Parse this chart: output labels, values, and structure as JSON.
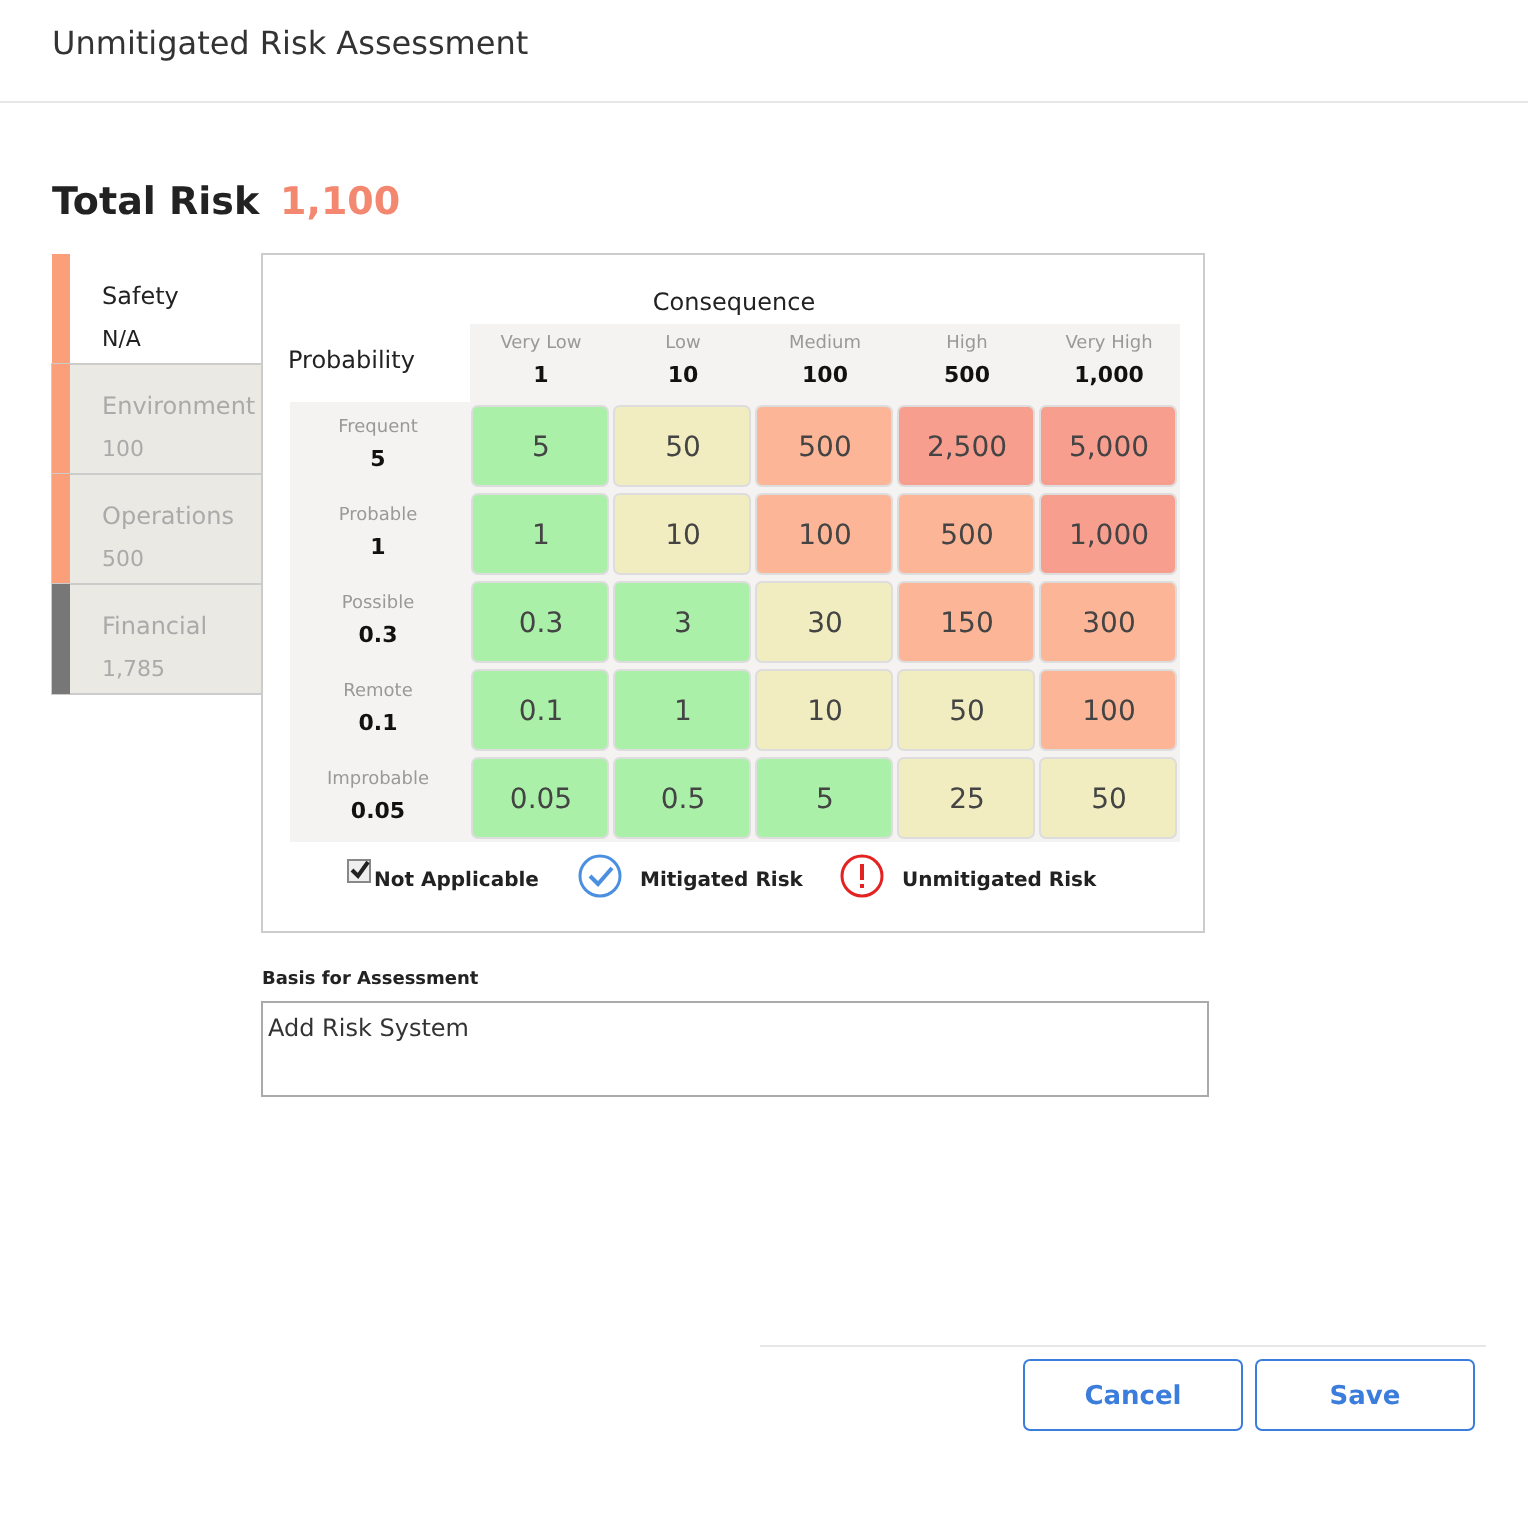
{
  "chart_data": {
    "type": "heatmap",
    "title": "Unmitigated Risk Assessment",
    "xlabel": "Consequence",
    "ylabel": "Probability",
    "categories": [
      "Very Low\n1",
      "Low\n10",
      "Medium\n100",
      "High\n500",
      "Very High\n1,000"
    ],
    "y_categories": [
      "Frequent\n5",
      "Probable\n1",
      "Possible\n0.3",
      "Remote\n0.1",
      "Improbable\n0.05"
    ],
    "cells": [
      [
        5,
        50,
        500,
        2500,
        5000
      ],
      [
        1,
        10,
        100,
        500,
        1000
      ],
      [
        0.3,
        3,
        30,
        150,
        300
      ],
      [
        0.1,
        1,
        10,
        50,
        100
      ],
      [
        0.05,
        0.5,
        5,
        25,
        50
      ]
    ],
    "colors": [
      [
        "#aaf0a9",
        "#f2edc0",
        "#fdb597",
        "#f89e8f",
        "#f89e8f"
      ],
      [
        "#aaf0a9",
        "#f2edc0",
        "#fdb597",
        "#fdb597",
        "#f89e8f"
      ],
      [
        "#aaf0a9",
        "#aaf0a9",
        "#f2edc0",
        "#fdb597",
        "#fdb597"
      ],
      [
        "#aaf0a9",
        "#aaf0a9",
        "#f2edc0",
        "#f2edc0",
        "#fdb597"
      ],
      [
        "#aaf0a9",
        "#aaf0a9",
        "#aaf0a9",
        "#f2edc0",
        "#f2edc0"
      ]
    ],
    "cell_labels": [
      [
        "5",
        "50",
        "500",
        "2,500",
        "5,000"
      ],
      [
        "1",
        "10",
        "100",
        "500",
        "1,000"
      ],
      [
        "0.3",
        "3",
        "30",
        "150",
        "300"
      ],
      [
        "0.1",
        "1",
        "10",
        "50",
        "100"
      ],
      [
        "0.05",
        "0.5",
        "5",
        "25",
        "50"
      ]
    ],
    "data_labels": true,
    "annotations": [
      "Total Risk",
      "1,100",
      "Safety",
      "N/A",
      "Environment",
      "100",
      "Operations",
      "500",
      "Financial",
      "1,785",
      "Not Applicable",
      "Mitigated Risk",
      "Unmitigated Risk",
      "Basis for Assessment",
      "Add Risk System",
      "Cancel",
      "Save"
    ]
  }
}
